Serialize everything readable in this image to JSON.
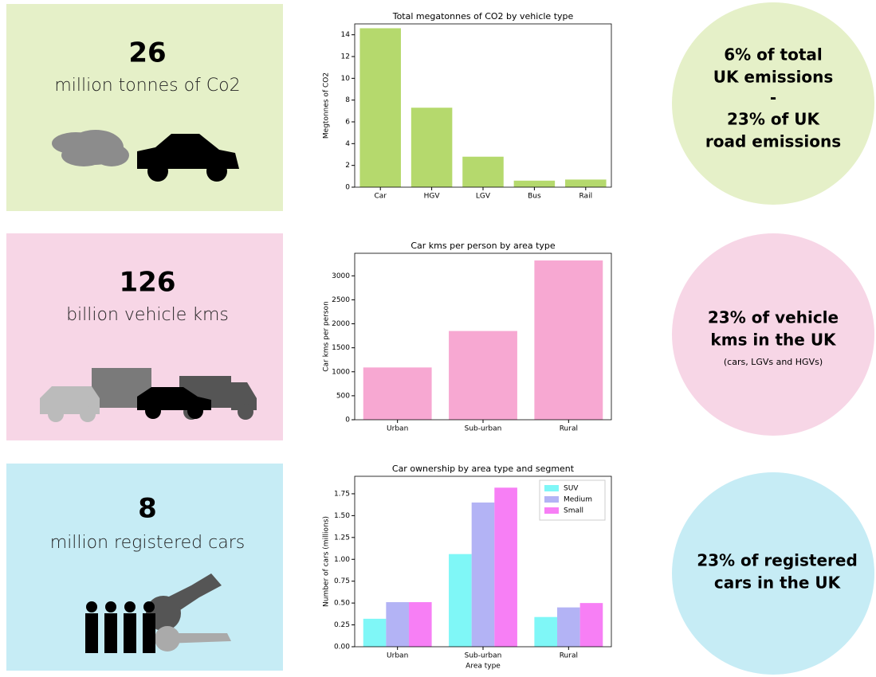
{
  "panels": [
    {
      "number": "26",
      "text": "million tonnes of Co2"
    },
    {
      "number": "126",
      "text": "billion vehicle kms"
    },
    {
      "number": "8",
      "text": "million registered cars"
    }
  ],
  "circles": [
    {
      "lines": [
        "6% of total",
        "UK emissions",
        "-",
        "23% of UK",
        "road emissions"
      ]
    },
    {
      "lines": [
        "23% of vehicle",
        "kms in the UK"
      ],
      "note": "(cars, LGVs and HGVs)"
    },
    {
      "lines": [
        "23% of registered",
        "cars in the UK"
      ]
    }
  ],
  "chart_data": [
    {
      "type": "bar",
      "title": "Total megatonnes of CO2 by vehicle type",
      "y_label": "Megtonnes of CO2",
      "categories": [
        "Car",
        "HGV",
        "LGV",
        "Bus",
        "Rail"
      ],
      "series": [
        {
          "color": "#b5d96d",
          "values": [
            14.6,
            7.3,
            2.8,
            0.6,
            0.7
          ]
        }
      ],
      "ylim": [
        0,
        15
      ],
      "yticks": [
        0,
        2,
        4,
        6,
        8,
        10,
        12,
        14
      ]
    },
    {
      "type": "bar",
      "title": "Car kms per person by area type",
      "y_label": "Car kms per person",
      "categories": [
        "Urban",
        "Sub-urban",
        "Rural"
      ],
      "series": [
        {
          "color": "#f7a8d2",
          "values": [
            1090,
            1850,
            3320
          ]
        }
      ],
      "ylim": [
        0,
        3470
      ],
      "yticks": [
        0,
        500,
        1000,
        1500,
        2000,
        2500,
        3000
      ]
    },
    {
      "type": "bar",
      "title": "Car ownership by area type and segment",
      "y_label": "Number of cars (millions)",
      "x_label": "Area type",
      "categories": [
        "Urban",
        "Sub-urban",
        "Rural"
      ],
      "series": [
        {
          "name": "SUV",
          "color": "#7ff7f7",
          "values": [
            0.32,
            1.06,
            0.34
          ]
        },
        {
          "name": "Medium",
          "color": "#b3b3f5",
          "values": [
            0.51,
            1.65,
            0.45
          ]
        },
        {
          "name": "Small",
          "color": "#f77ff5",
          "values": [
            0.51,
            1.82,
            0.5
          ]
        }
      ],
      "ylim": [
        0,
        1.95
      ],
      "yticks": [
        {
          "value": 0,
          "label": "0.00"
        },
        {
          "value": 0.25,
          "label": "0.25"
        },
        {
          "value": 0.5,
          "label": "0.50"
        },
        {
          "value": 0.75,
          "label": "0.75"
        },
        {
          "value": 1,
          "label": "1.00"
        },
        {
          "value": 1.25,
          "label": "1.25"
        },
        {
          "value": 1.5,
          "label": "1.50"
        },
        {
          "value": 1.75,
          "label": "1.75"
        }
      ],
      "legend": "upper right"
    }
  ]
}
